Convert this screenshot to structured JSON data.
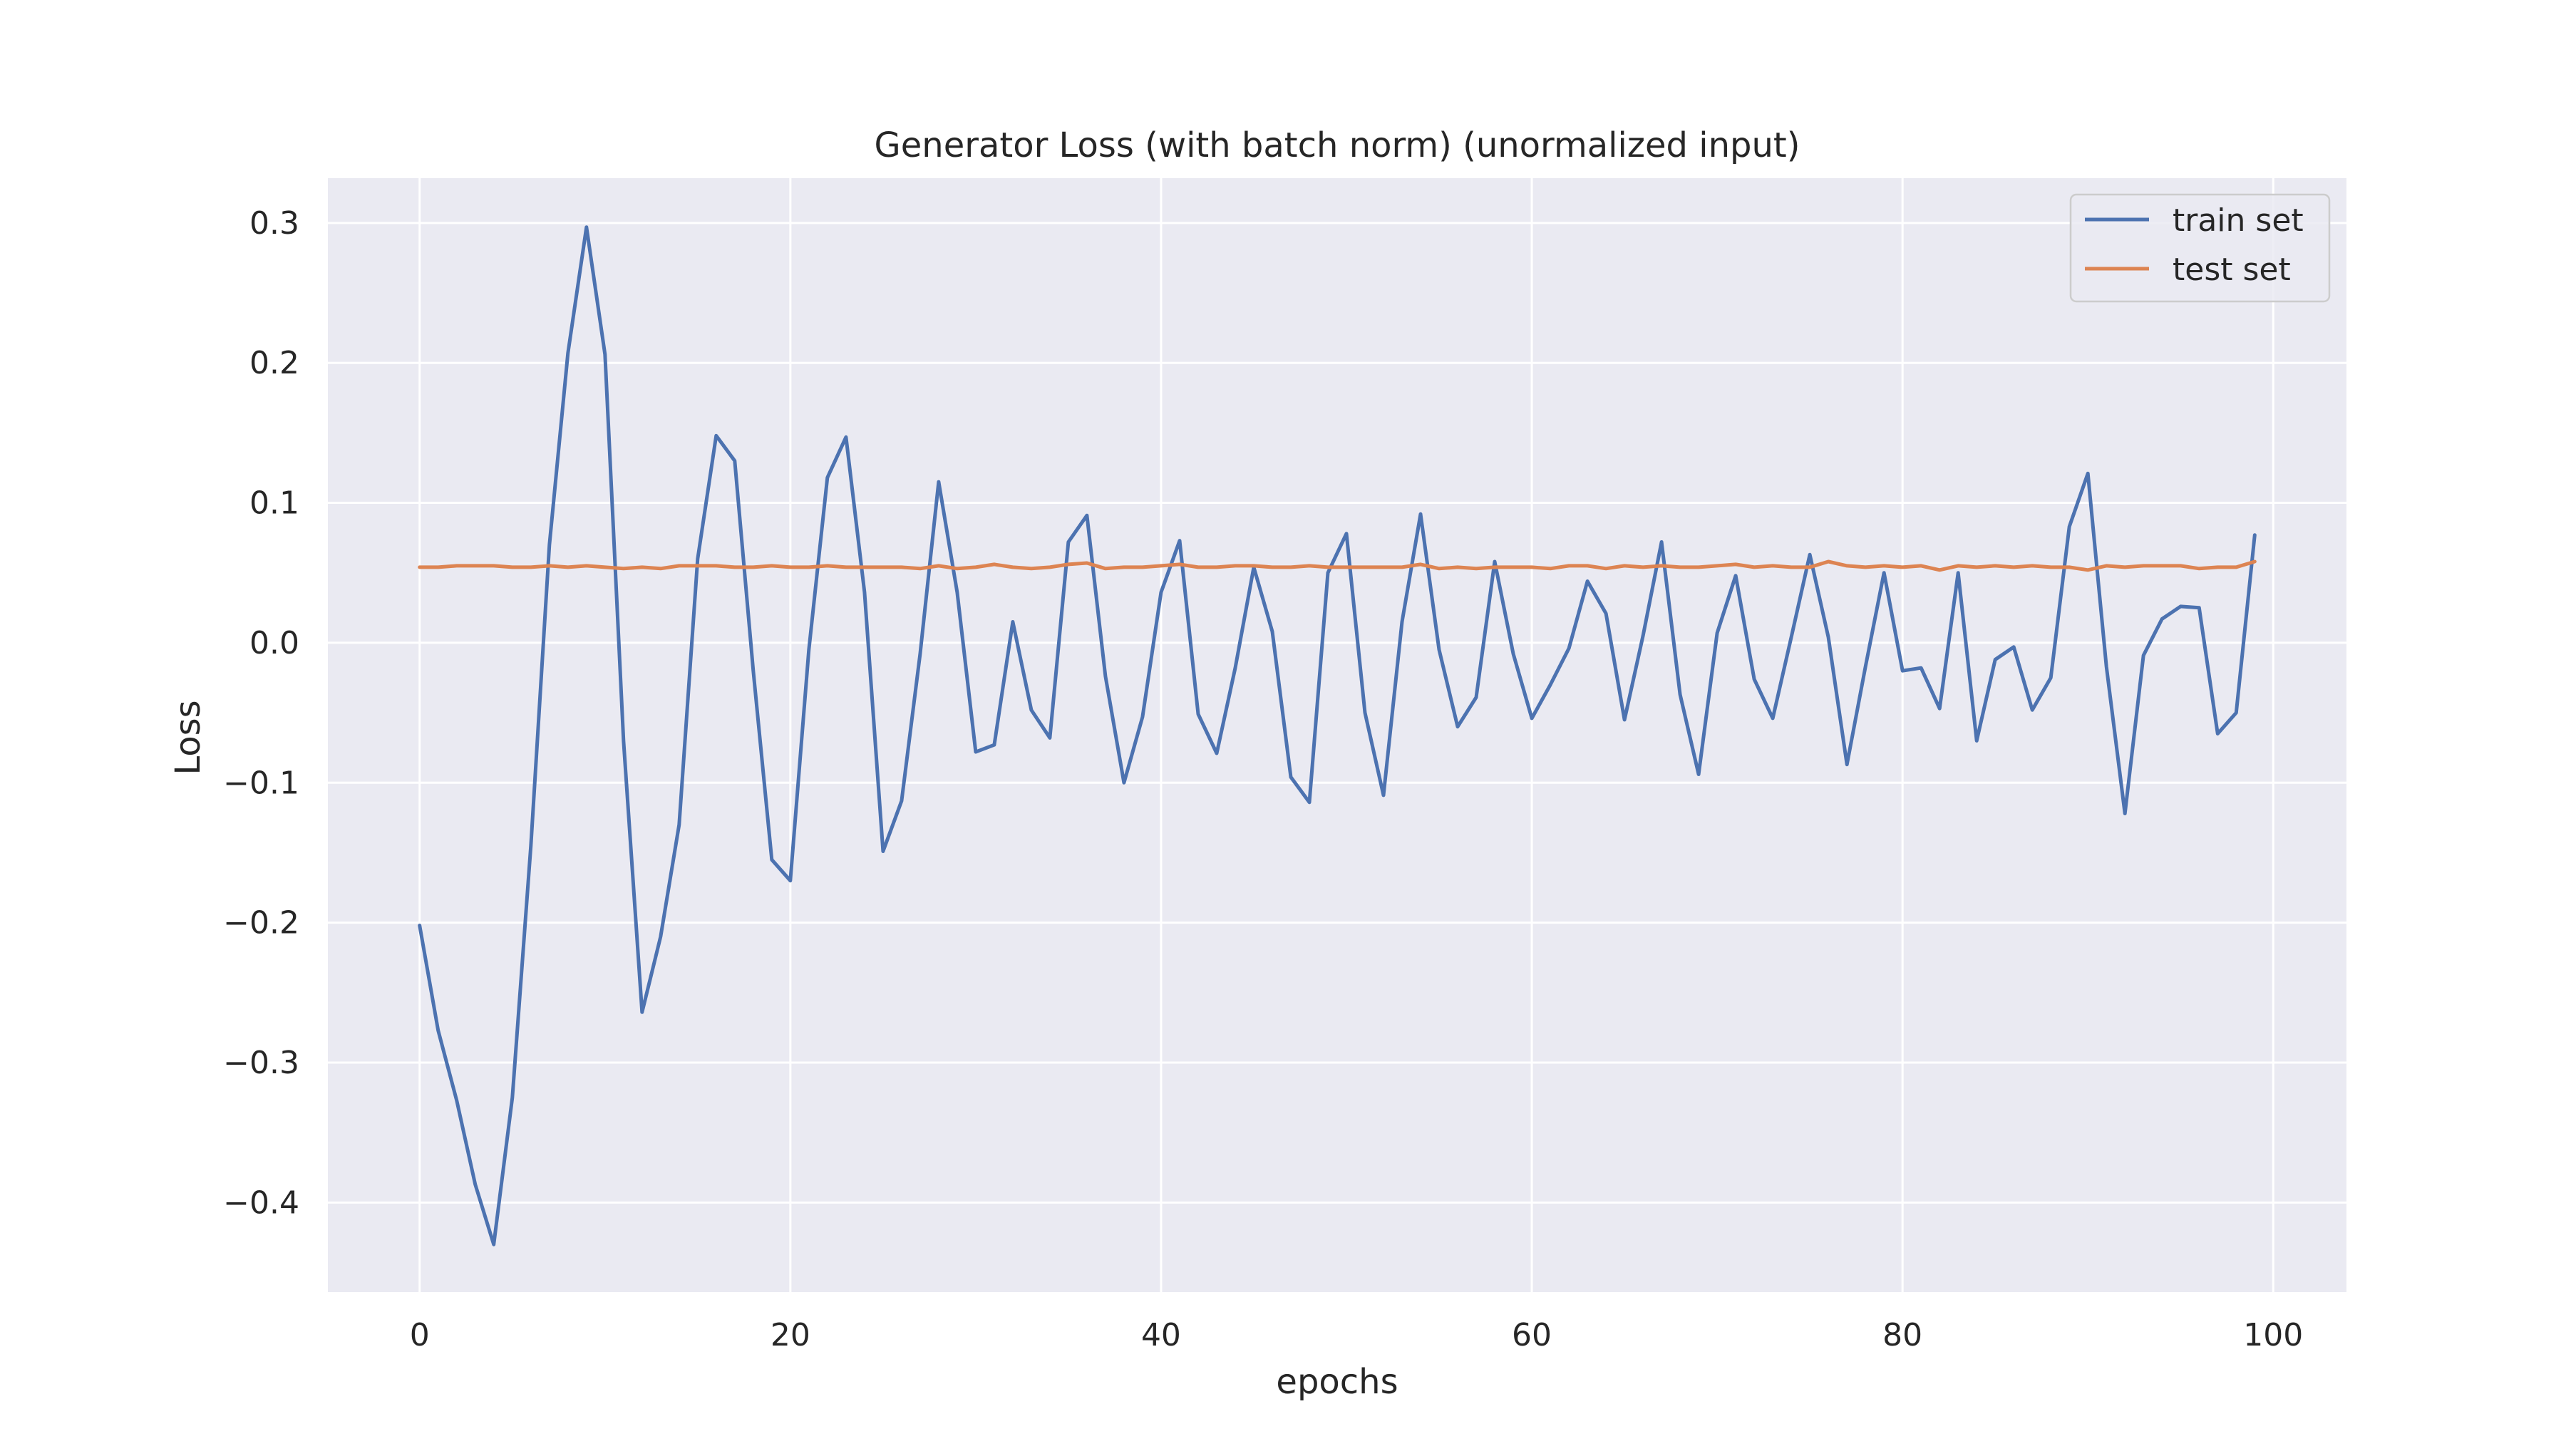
{
  "chart_data": {
    "type": "line",
    "title": "Generator Loss (with batch norm) (unormalized input)",
    "xlabel": "epochs",
    "ylabel": "Loss",
    "xlim": [
      -4.95,
      103.95
    ],
    "ylim": [
      -0.464,
      0.332
    ],
    "xticks": [
      0,
      20,
      40,
      60,
      80,
      100
    ],
    "xtick_labels": [
      "0",
      "20",
      "40",
      "60",
      "80",
      "100"
    ],
    "yticks": [
      -0.4,
      -0.3,
      -0.2,
      -0.1,
      0.0,
      0.1,
      0.2,
      0.3
    ],
    "ytick_labels": [
      "−0.4",
      "−0.3",
      "−0.2",
      "−0.1",
      "0.0",
      "0.1",
      "0.2",
      "0.3"
    ],
    "grid": true,
    "legend_position": "top-right",
    "colors": {
      "background": "#eaeaf2",
      "grid": "#ffffff"
    },
    "series": [
      {
        "name": "train set",
        "color": "#4c72b0",
        "values": [
          -0.202,
          -0.277,
          -0.327,
          -0.387,
          -0.43,
          -0.325,
          -0.145,
          0.07,
          0.207,
          0.297,
          0.206,
          -0.07,
          -0.264,
          -0.21,
          -0.13,
          0.06,
          0.148,
          0.13,
          -0.02,
          -0.155,
          -0.17,
          -0.005,
          0.118,
          0.147,
          0.036,
          -0.149,
          -0.113,
          -0.008,
          0.115,
          0.036,
          -0.078,
          -0.073,
          0.015,
          -0.048,
          -0.068,
          0.072,
          0.091,
          -0.024,
          -0.1,
          -0.053,
          0.036,
          0.073,
          -0.051,
          -0.079,
          -0.018,
          0.054,
          0.008,
          -0.096,
          -0.114,
          0.05,
          0.078,
          -0.05,
          -0.109,
          0.015,
          0.092,
          -0.005,
          -0.06,
          -0.039,
          0.058,
          -0.008,
          -0.054,
          -0.03,
          -0.004,
          0.044,
          0.021,
          -0.055,
          0.005,
          0.072,
          -0.037,
          -0.094,
          0.007,
          0.048,
          -0.026,
          -0.054,
          0.004,
          0.063,
          0.004,
          -0.087,
          -0.017,
          0.05,
          -0.02,
          -0.018,
          -0.047,
          0.05,
          -0.07,
          -0.012,
          -0.003,
          -0.048,
          -0.025,
          0.083,
          0.121,
          -0.017,
          -0.122,
          -0.009,
          0.017,
          0.026,
          0.025,
          -0.065,
          -0.05,
          0.077
        ]
      },
      {
        "name": "test set",
        "color": "#dd8452",
        "values": [
          0.054,
          0.054,
          0.055,
          0.055,
          0.055,
          0.054,
          0.054,
          0.055,
          0.054,
          0.055,
          0.054,
          0.053,
          0.054,
          0.053,
          0.055,
          0.055,
          0.055,
          0.054,
          0.054,
          0.055,
          0.054,
          0.054,
          0.055,
          0.054,
          0.054,
          0.054,
          0.054,
          0.053,
          0.055,
          0.053,
          0.054,
          0.056,
          0.054,
          0.053,
          0.054,
          0.056,
          0.057,
          0.053,
          0.054,
          0.054,
          0.055,
          0.056,
          0.054,
          0.054,
          0.055,
          0.055,
          0.054,
          0.054,
          0.055,
          0.054,
          0.054,
          0.054,
          0.054,
          0.054,
          0.056,
          0.053,
          0.054,
          0.053,
          0.054,
          0.054,
          0.054,
          0.053,
          0.055,
          0.055,
          0.053,
          0.055,
          0.054,
          0.055,
          0.054,
          0.054,
          0.055,
          0.056,
          0.054,
          0.055,
          0.054,
          0.054,
          0.058,
          0.055,
          0.054,
          0.055,
          0.054,
          0.055,
          0.052,
          0.055,
          0.054,
          0.055,
          0.054,
          0.055,
          0.054,
          0.054,
          0.052,
          0.055,
          0.054,
          0.055,
          0.055,
          0.055,
          0.053,
          0.054,
          0.054,
          0.058
        ]
      }
    ]
  }
}
